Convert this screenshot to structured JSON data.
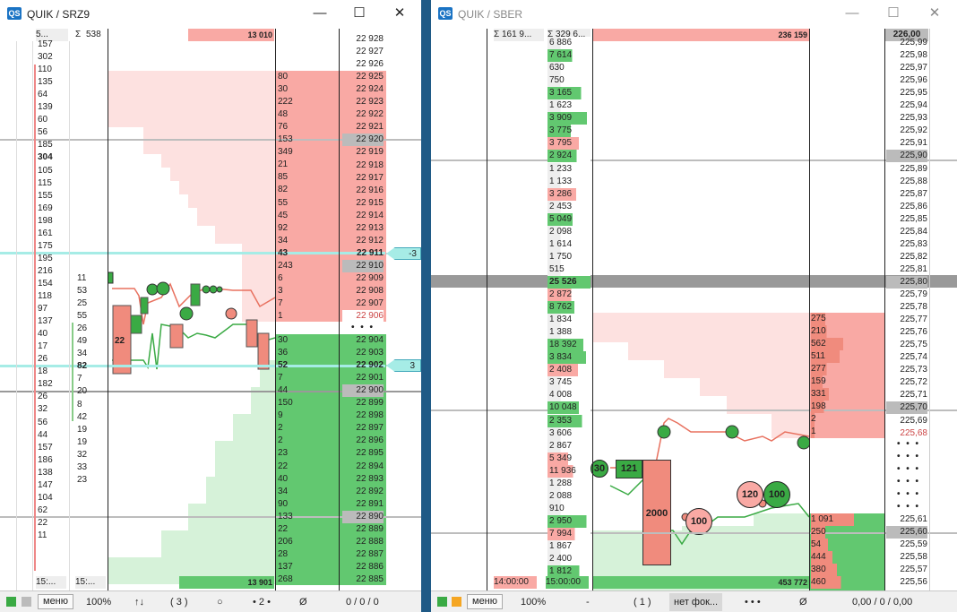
{
  "left": {
    "title": "QUIK / SRZ9",
    "logo": "QS",
    "min_label": "—",
    "max_label": "☐",
    "close_label": "✕",
    "header": {
      "sum1": "5...",
      "sum2_icon": "Σ",
      "sum2": "538",
      "top_vol": "13 010"
    },
    "col1": [
      "157",
      "302",
      "110",
      "135",
      "64",
      "139",
      "60",
      "56",
      "185",
      "304",
      "105",
      "115",
      "155",
      "169",
      "198",
      "161",
      "175",
      "195",
      "216",
      "154",
      "118",
      "97",
      "137",
      "40",
      "17",
      "26",
      "18",
      "182",
      "26",
      "32",
      "56",
      "44",
      "157",
      "186",
      "138",
      "147",
      "104",
      "62",
      "22",
      "11"
    ],
    "col2": [
      "11",
      "53",
      "25",
      "55",
      "26",
      "49",
      "34",
      "82",
      "7",
      "20",
      "8",
      "42",
      "19",
      "19",
      "32",
      "33",
      "23"
    ],
    "ask_vols": [
      "80",
      "30",
      "222",
      "48",
      "76",
      "153",
      "349",
      "21",
      "85",
      "82",
      "55",
      "45",
      "92",
      "34",
      "43",
      "243",
      "6",
      "3",
      "7",
      "1"
    ],
    "prices_top": [
      "22 928",
      "22 927",
      "22 926",
      "22 925",
      "22 924",
      "22 923",
      "22 922",
      "22 921",
      "22 920",
      "22 919",
      "22 918",
      "22 917",
      "22 916",
      "22 915",
      "22 914",
      "22 913",
      "22 912",
      "22 911",
      "22 910",
      "22 909",
      "22 908",
      "22 907",
      "22 906"
    ],
    "spread": "• • •",
    "bid_vols": [
      "30",
      "36",
      "52",
      "7",
      "44",
      "150",
      "9",
      "2",
      "2",
      "23",
      "22",
      "40",
      "34",
      "90",
      "133",
      "22",
      "206",
      "28",
      "137",
      "268"
    ],
    "prices_bot": [
      "22 904",
      "22 903",
      "22 902",
      "22 901",
      "22 900",
      "22 899",
      "22 898",
      "22 897",
      "22 896",
      "22 895",
      "22 894",
      "22 893",
      "22 892",
      "22 891",
      "22 890",
      "22 889",
      "22 888",
      "22 887",
      "22 886",
      "22 885"
    ],
    "pos_ask": "-3",
    "pos_bid": "3",
    "candle_label": "22",
    "bottom_time": "15:...",
    "bottom_time2": "15:...",
    "bottom_vol": "13 901",
    "status": {
      "menu": "меню",
      "zoom": "100%",
      "sort": "↑↓",
      "count": "( 3 )",
      "circle": "○",
      "dot2": "• 2 •",
      "empty": "Ø",
      "pos": "0 / 0 / 0"
    }
  },
  "right": {
    "title": "QUIK / SBER",
    "logo": "QS",
    "min_label": "—",
    "max_label": "☐",
    "close_label": "✕",
    "header": {
      "sum1": "Σ 161 9...",
      "sum2": "Σ 329 6...",
      "top_vol": "236 159",
      "top_price": "226,00"
    },
    "trade_vols": [
      "6 886",
      "7 614",
      "630",
      "750",
      "3 165",
      "1 623",
      "3 909",
      "3 775",
      "3 795",
      "2 924",
      "1 233",
      "1 133",
      "3 286",
      "2 453",
      "5 049",
      "2 098",
      "1 614",
      "1 750",
      "515",
      "25 526",
      "2 872",
      "8 762",
      "1 834",
      "1 388",
      "18 392",
      "3 834",
      "2 408",
      "3 745",
      "4 008",
      "10 048",
      "2 353",
      "3 606",
      "2 867",
      "5 349",
      "11 936",
      "1 288",
      "2 088",
      "910",
      "2 950",
      "7 994",
      "1 867",
      "2 400",
      "1 812"
    ],
    "prices_top": [
      "225,99",
      "225,98",
      "225,97",
      "225,96",
      "225,95",
      "225,94",
      "225,93",
      "225,92",
      "225,91",
      "225,90",
      "225,89",
      "225,88",
      "225,87",
      "225,86",
      "225,85",
      "225,84",
      "225,83",
      "225,82",
      "225,81",
      "225,80",
      "225,79",
      "225,78",
      "225,77",
      "225,76",
      "225,75",
      "225,74",
      "225,73",
      "225,72",
      "225,71",
      "225,70",
      "225,69",
      "225,68"
    ],
    "ask_vols": [
      "275",
      "210",
      "562",
      "511",
      "277",
      "159",
      "331",
      "198",
      "2",
      "1"
    ],
    "spread": "• • •",
    "bid_vols": [
      "1 091",
      "250",
      "54",
      "444",
      "380",
      "460"
    ],
    "prices_bot": [
      "225,61",
      "225,60",
      "225,59",
      "225,58",
      "225,57",
      "225,56"
    ],
    "bubbles": {
      "b1": "30",
      "b2": "121",
      "b3": "2000",
      "b4": "100",
      "b5": "120",
      "b6": "100"
    },
    "bottom_time": "14:00:00",
    "bottom_time2": "15:00:00",
    "bottom_vol": "453 772",
    "status": {
      "menu": "меню",
      "zoom": "100%",
      "dash": "-",
      "count": "( 1 )",
      "focus": "нет фок...",
      "dots": "• • •",
      "empty": "Ø",
      "pos": "0,00 / 0 / 0,00"
    }
  },
  "colors": {
    "ask": "#f9a9a4",
    "bid": "#62c870",
    "blue": "#1f5a86"
  }
}
